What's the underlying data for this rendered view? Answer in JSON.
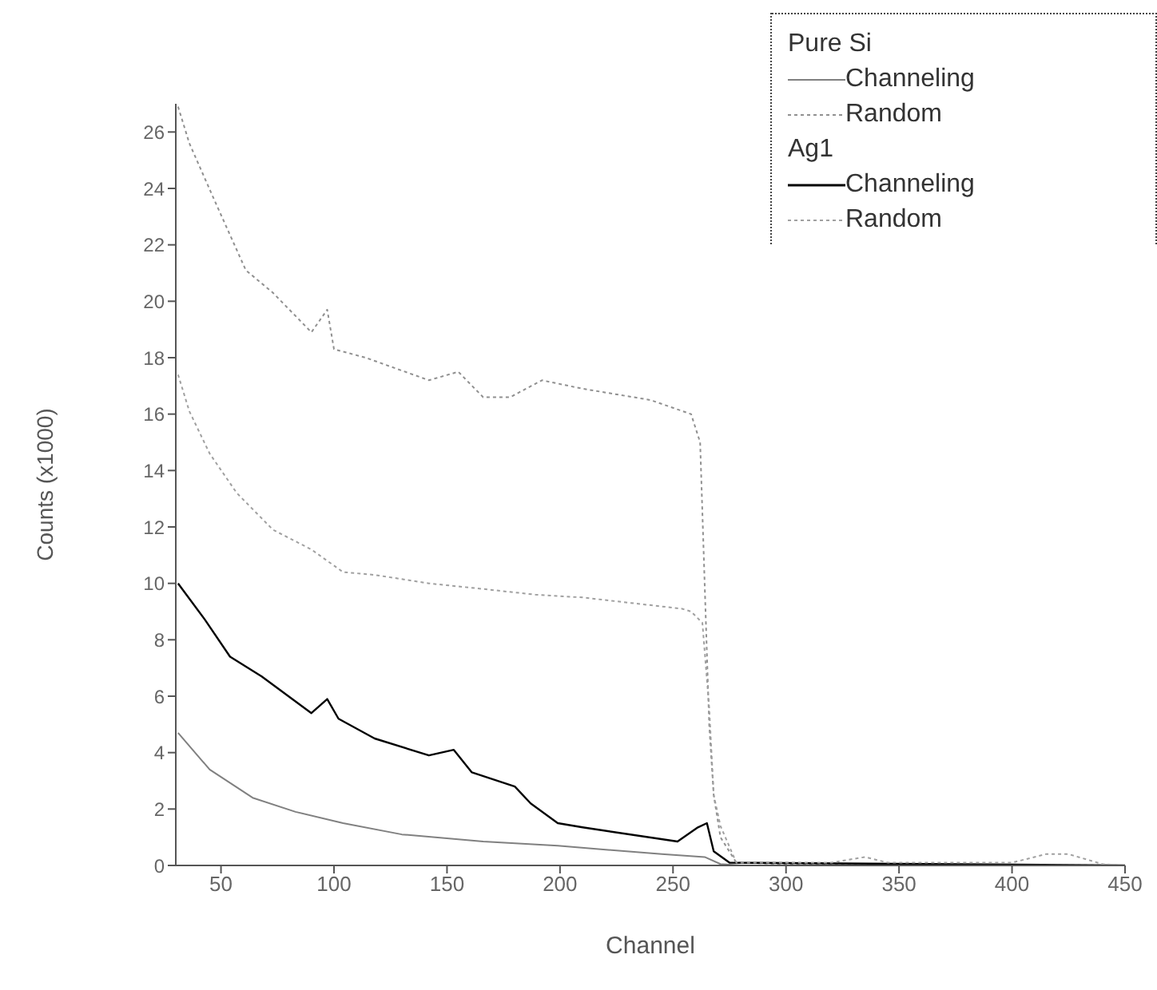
{
  "chart_data": {
    "type": "line",
    "xlabel": "Channel",
    "ylabel": "Counts (x1000)",
    "xlim": [
      30,
      450
    ],
    "ylim": [
      0,
      27
    ],
    "xticks": [
      50,
      100,
      150,
      200,
      250,
      300,
      350,
      400,
      450
    ],
    "yticks": [
      0,
      2,
      4,
      6,
      8,
      10,
      12,
      14,
      16,
      18,
      20,
      22,
      24,
      26
    ],
    "legend": "top right",
    "marker": "none",
    "annotations": [
      "Pure Si",
      "Ag1"
    ],
    "series": [
      {
        "name": "Channeling",
        "color": "#808080",
        "line_style": "solid",
        "x": [
          31,
          45,
          64,
          83,
          104,
          130,
          166,
          199,
          245,
          264,
          271,
          280,
          450
        ],
        "values": [
          4.7,
          3.4,
          2.4,
          1.9,
          1.5,
          1.1,
          0.85,
          0.7,
          0.4,
          0.3,
          0.05,
          0,
          0
        ]
      },
      {
        "name": "Random",
        "color": "#909090",
        "line_style": "dotted",
        "x": [
          31,
          36,
          47,
          61,
          73,
          90,
          97,
          100,
          114,
          128,
          142,
          155,
          166,
          178,
          192,
          210,
          240,
          258,
          262,
          264,
          266,
          268,
          271,
          278,
          300,
          450
        ],
        "values": [
          26.9,
          25.6,
          23.6,
          21.1,
          20.3,
          18.9,
          19.7,
          18.3,
          18,
          17.6,
          17.2,
          17.5,
          16.6,
          16.6,
          17.2,
          16.9,
          16.5,
          16,
          15,
          10,
          5,
          2.5,
          1,
          0.1,
          0.05,
          0
        ]
      },
      {
        "name": "Channeling",
        "color": "#000000",
        "line_style": "solid",
        "x": [
          31,
          43,
          54,
          68,
          90,
          97,
          102,
          118,
          142,
          153,
          161,
          180,
          187,
          199,
          210,
          252,
          261,
          265,
          268,
          275,
          450
        ],
        "values": [
          10,
          8.7,
          7.4,
          6.7,
          5.4,
          5.9,
          5.2,
          4.5,
          3.9,
          4.1,
          3.3,
          2.8,
          2.2,
          1.5,
          1.35,
          0.85,
          1.35,
          1.5,
          0.5,
          0.1,
          0
        ]
      },
      {
        "name": "Random",
        "color": "#a0a0a0",
        "line_style": "dotted",
        "x": [
          31,
          36,
          45,
          57,
          73,
          90,
          104,
          118,
          142,
          166,
          189,
          210,
          254,
          258,
          263,
          266,
          268,
          271,
          278,
          320,
          335,
          345,
          400,
          415,
          425,
          440,
          450
        ],
        "values": [
          17.4,
          16.1,
          14.6,
          13.2,
          11.9,
          11.2,
          10.4,
          10.3,
          10,
          9.8,
          9.6,
          9.5,
          9.1,
          9,
          8.6,
          5.6,
          2.5,
          1.4,
          0.1,
          0.1,
          0.3,
          0.1,
          0.1,
          0.4,
          0.4,
          0.05,
          0
        ]
      }
    ]
  }
}
